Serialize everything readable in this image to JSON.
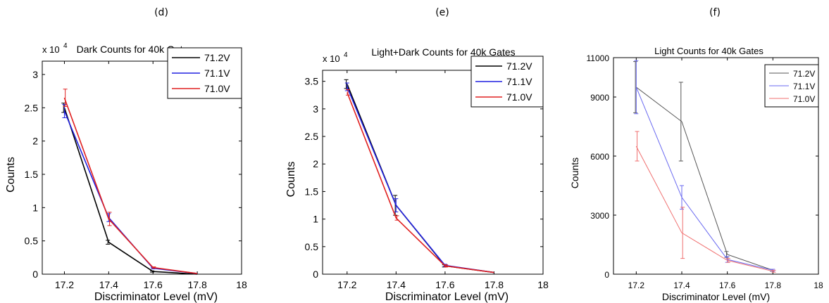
{
  "figure": {
    "panels": [
      "(d)",
      "(e)",
      "(f)"
    ]
  },
  "chart_data": [
    {
      "type": "line",
      "panel_label": "(d)",
      "title": "Dark Counts for 40k Gates",
      "xlabel": "Discriminator Level (mV)",
      "ylabel": "Counts",
      "y_multiplier": "x 10",
      "y_exponent": "4",
      "xlim": [
        17.1,
        18.0
      ],
      "ylim": [
        0,
        3.2
      ],
      "x_ticks": [
        17.2,
        17.4,
        17.6,
        17.8,
        18
      ],
      "x_tick_labels": [
        "17.2",
        "17.4",
        "17.6",
        "17.8",
        "18"
      ],
      "y_ticks": [
        0,
        0.5,
        1,
        1.5,
        2,
        2.5,
        3
      ],
      "y_tick_labels": [
        "0",
        "0.5",
        "1",
        "1.5",
        "2",
        "2.5",
        "3"
      ],
      "grid": false,
      "legend_position": "top-right",
      "series": [
        {
          "name": "71.2V",
          "color": "#000000",
          "x": [
            17.2,
            17.4,
            17.6,
            17.8
          ],
          "y": [
            2.5,
            0.48,
            0.04,
            0.0
          ],
          "err": [
            0.07,
            0.03,
            0.01,
            0.0
          ]
        },
        {
          "name": "71.1V",
          "color": "#2020e0",
          "x": [
            17.2,
            17.4,
            17.6,
            17.8
          ],
          "y": [
            2.45,
            0.85,
            0.09,
            0.01
          ],
          "err": [
            0.1,
            0.06,
            0.01,
            0.0
          ]
        },
        {
          "name": "71.0V",
          "color": "#e02020",
          "x": [
            17.2,
            17.4,
            17.6,
            17.8
          ],
          "y": [
            2.65,
            0.83,
            0.1,
            0.01
          ],
          "err": [
            0.13,
            0.1,
            0.01,
            0.0
          ]
        }
      ]
    },
    {
      "type": "line",
      "panel_label": "(e)",
      "title": "Light+Dark Counts for 40k Gates",
      "xlabel": "Discriminator Level (mV)",
      "ylabel": "Counts",
      "y_multiplier": "x 10",
      "y_exponent": "4",
      "xlim": [
        17.1,
        18.0
      ],
      "ylim": [
        0,
        3.7
      ],
      "x_ticks": [
        17.2,
        17.4,
        17.6,
        17.8,
        18
      ],
      "x_tick_labels": [
        "17.2",
        "17.4",
        "17.6",
        "17.8",
        "18"
      ],
      "y_ticks": [
        0,
        0.5,
        1,
        1.5,
        2,
        2.5,
        3,
        3.5
      ],
      "y_tick_labels": [
        "0",
        "0.5",
        "1",
        "1.5",
        "2",
        "2.5",
        "3",
        "3.5"
      ],
      "grid": false,
      "legend_position": "top-right",
      "series": [
        {
          "name": "71.2V",
          "color": "#000000",
          "x": [
            17.2,
            17.4,
            17.6,
            17.8
          ],
          "y": [
            3.45,
            1.25,
            0.15,
            0.03
          ],
          "err": [
            0.08,
            0.18,
            0.02,
            0.0
          ]
        },
        {
          "name": "71.1V",
          "color": "#2020e0",
          "x": [
            17.2,
            17.4,
            17.6,
            17.8
          ],
          "y": [
            3.4,
            1.25,
            0.16,
            0.03
          ],
          "err": [
            0.07,
            0.12,
            0.02,
            0.0
          ]
        },
        {
          "name": "71.0V",
          "color": "#e02020",
          "x": [
            17.2,
            17.4,
            17.6,
            17.8
          ],
          "y": [
            3.3,
            1.02,
            0.15,
            0.03
          ],
          "err": [
            0.05,
            0.04,
            0.02,
            0.0
          ]
        }
      ]
    },
    {
      "type": "line",
      "panel_label": "(f)",
      "title": "Light Counts for 40k Gates",
      "xlabel": "Discriminator Level (mV)",
      "ylabel": "Counts",
      "xlim": [
        17.1,
        18.0
      ],
      "ylim": [
        0,
        11000
      ],
      "x_ticks": [
        17.2,
        17.4,
        17.6,
        17.8,
        18
      ],
      "x_tick_labels": [
        "17.2",
        "17.4",
        "17.6",
        "17.8",
        "18"
      ],
      "y_ticks": [
        0,
        3000,
        6000,
        9000,
        11000
      ],
      "y_tick_labels": [
        "0",
        "3000",
        "6000",
        "9000",
        "11000"
      ],
      "grid": false,
      "legend_position": "top-right",
      "series": [
        {
          "name": "71.2V",
          "color": "#555555",
          "x": [
            17.2,
            17.4,
            17.6,
            17.8
          ],
          "y": [
            9500,
            7750,
            1000,
            200
          ],
          "err": [
            1300,
            2000,
            150,
            50
          ]
        },
        {
          "name": "71.1V",
          "color": "#6a6af0",
          "x": [
            17.2,
            17.4,
            17.6,
            17.8
          ],
          "y": [
            9500,
            3900,
            750,
            200
          ],
          "err": [
            1350,
            600,
            150,
            50
          ]
        },
        {
          "name": "71.0V",
          "color": "#f07070",
          "x": [
            17.2,
            17.4,
            17.6,
            17.8
          ],
          "y": [
            6500,
            2100,
            700,
            150
          ],
          "err": [
            750,
            1300,
            100,
            50
          ]
        }
      ]
    }
  ]
}
